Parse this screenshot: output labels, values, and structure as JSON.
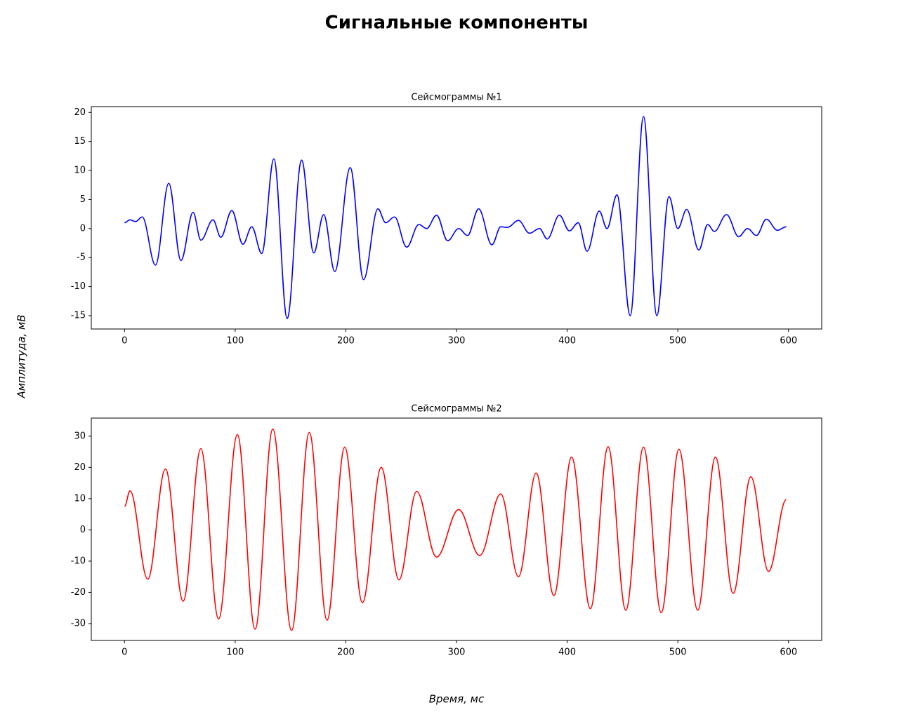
{
  "title": "Сигнальные компоненты",
  "xlabel": "Время, мс",
  "ylabel": "Амплитуда, мВ",
  "chart_data": [
    {
      "type": "line",
      "title": "Сейсмограммы №1",
      "xlim": [
        -30,
        630
      ],
      "ylim": [
        -17.3,
        21.0
      ],
      "xticks": [
        0,
        100,
        200,
        300,
        400,
        500,
        600
      ],
      "yticks": [
        -15,
        -10,
        -5,
        0,
        5,
        10,
        15,
        20
      ],
      "grid": false,
      "series": [
        {
          "name": "Сейсмограммы №1",
          "color": "#0000ff",
          "x": [
            0,
            5,
            10,
            16,
            28,
            40,
            51,
            62,
            69,
            80,
            87,
            97,
            107,
            115,
            124,
            135,
            147,
            160,
            171,
            180,
            190,
            204,
            216,
            229,
            236,
            244,
            255,
            266,
            273,
            282,
            292,
            302,
            310,
            320,
            332,
            340,
            346,
            356,
            366,
            375,
            382,
            393,
            402,
            410,
            418,
            429,
            436,
            445,
            457,
            469,
            481,
            492,
            500,
            508,
            519,
            527,
            533,
            544,
            555,
            563,
            571,
            580,
            590,
            598
          ],
          "values": [
            1,
            1.5,
            1.2,
            2,
            -6.3,
            7.8,
            -5.5,
            2.8,
            -2,
            1.5,
            -1.5,
            3.1,
            -2.7,
            0.3,
            -4.3,
            12,
            -15.5,
            11.8,
            -4.2,
            2.4,
            -7.4,
            10.5,
            -8.8,
            3.4,
            1,
            2,
            -3.2,
            0.7,
            0,
            2.3,
            -2.1,
            0,
            -1.2,
            3.4,
            -2.8,
            0.3,
            0.2,
            1.4,
            -0.8,
            0,
            -1.8,
            2.3,
            -0.4,
            1,
            -3.9,
            3,
            0,
            5.8,
            -15,
            19.3,
            -15,
            5.5,
            0,
            3.3,
            -3.7,
            0.7,
            -0.5,
            2.4,
            -1.4,
            0,
            -1.2,
            1.6,
            -0.3,
            0.3
          ]
        }
      ]
    },
    {
      "type": "line",
      "title": "Сейсмограммы №2",
      "xlim": [
        -30,
        630
      ],
      "ylim": [
        -35.4,
        35.8
      ],
      "xticks": [
        0,
        100,
        200,
        300,
        400,
        500,
        600
      ],
      "yticks": [
        -30,
        -20,
        -10,
        0,
        10,
        20,
        30
      ],
      "grid": false,
      "series": [
        {
          "name": "Сейсмограммы №2",
          "color": "#ff0000",
          "x": [
            0,
            5,
            21,
            37,
            53,
            69,
            85,
            102,
            118,
            134,
            151,
            167,
            183,
            199,
            215,
            232,
            248,
            264,
            282,
            302,
            321,
            340,
            356,
            372,
            388,
            404,
            421,
            437,
            453,
            469,
            485,
            501,
            518,
            534,
            550,
            566,
            582,
            598
          ],
          "values": [
            7.5,
            12.5,
            -15.8,
            19.5,
            -22.8,
            26,
            -28.5,
            30.5,
            -31.8,
            32.3,
            -32.2,
            31.2,
            -28.9,
            26.5,
            -23.3,
            20,
            -16,
            12.3,
            -8.7,
            6.5,
            -8.2,
            11.5,
            -15,
            18.2,
            -21,
            23.3,
            -25.2,
            26.6,
            -25.7,
            26.5,
            -26.5,
            25.8,
            -25.7,
            23.3,
            -20.3,
            17,
            -13.3,
            9.7
          ]
        }
      ]
    }
  ]
}
